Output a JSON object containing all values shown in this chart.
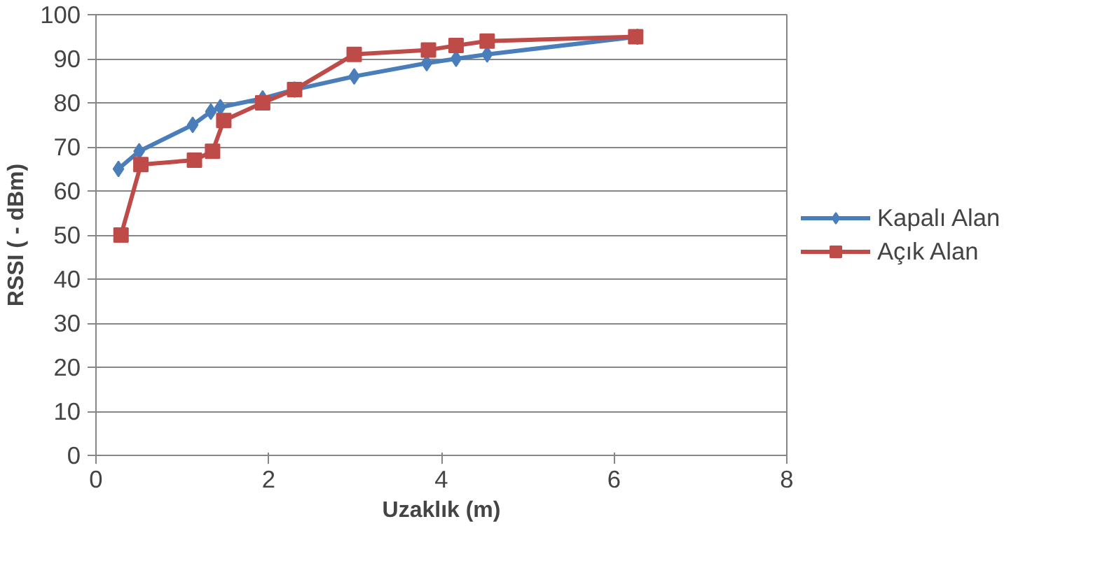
{
  "chart_data": {
    "type": "line",
    "xlabel": "Uzaklık (m)",
    "ylabel": "RSSI ( - dBm)",
    "xlim": [
      0,
      8
    ],
    "xticks": [
      0,
      2,
      4,
      6,
      8
    ],
    "ylim": [
      0,
      100
    ],
    "yticks": [
      0,
      10,
      20,
      30,
      40,
      50,
      60,
      70,
      80,
      90,
      100
    ],
    "grid": "y",
    "legend": "right",
    "series": [
      {
        "name": "Kapalı Alan",
        "color": "#4a7ebb",
        "marker": "diamond",
        "x": [
          0.26,
          0.5,
          1.12,
          1.33,
          1.44,
          1.93,
          2.3,
          2.99,
          3.83,
          4.17,
          4.53,
          6.27
        ],
        "values": [
          65,
          69,
          75,
          78,
          79,
          81,
          83,
          86,
          89,
          90,
          91,
          95
        ]
      },
      {
        "name": "Açık Alan",
        "color": "#be4b48",
        "marker": "square",
        "x": [
          0.29,
          0.52,
          1.14,
          1.35,
          1.48,
          1.93,
          2.3,
          2.99,
          3.85,
          4.17,
          4.53,
          6.25
        ],
        "values": [
          50,
          66,
          67,
          69,
          76,
          80,
          83,
          91,
          92,
          93,
          94,
          95
        ]
      }
    ]
  }
}
